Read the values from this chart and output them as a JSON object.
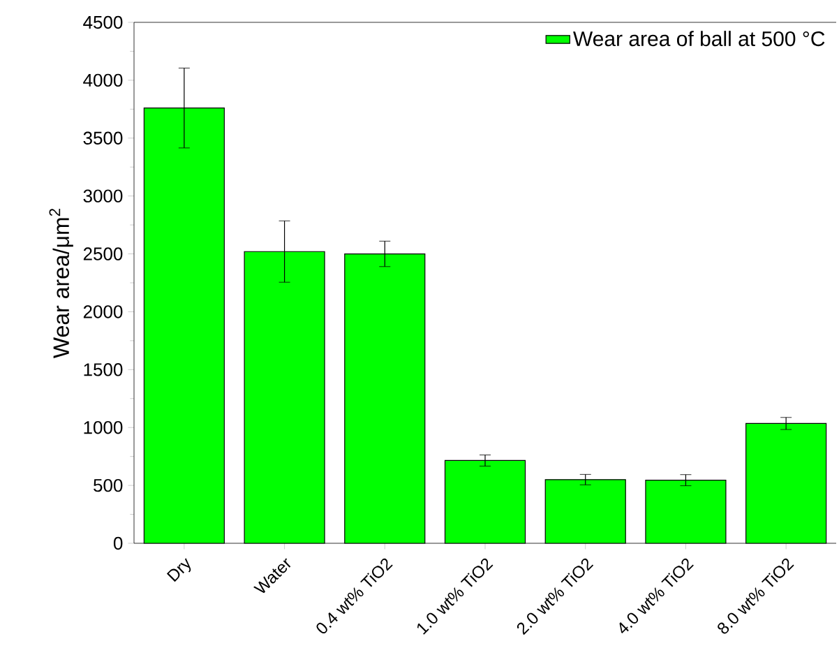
{
  "chart_data": {
    "type": "bar",
    "ylabel": "Wear area/μm$^{2}$",
    "categories": [
      "Dry",
      "Water",
      "0.4 wt% TiO2",
      "1.0 wt% TiO2",
      "2.0 wt% TiO2",
      "4.0 wt% TiO2",
      "8.0 wt% TiO2"
    ],
    "series": [
      {
        "name": "Wear area of ball at 500 °C",
        "color": "#00ff00",
        "values": [
          3760,
          2520,
          2500,
          715,
          550,
          545,
          1035
        ],
        "errors": [
          345,
          265,
          110,
          48,
          45,
          48,
          52
        ]
      }
    ],
    "ylim": [
      0,
      4500
    ],
    "yticks": [
      0,
      500,
      1000,
      1500,
      2000,
      2500,
      3000,
      3500,
      4000,
      4500
    ],
    "legend": "top right",
    "grid": false
  }
}
